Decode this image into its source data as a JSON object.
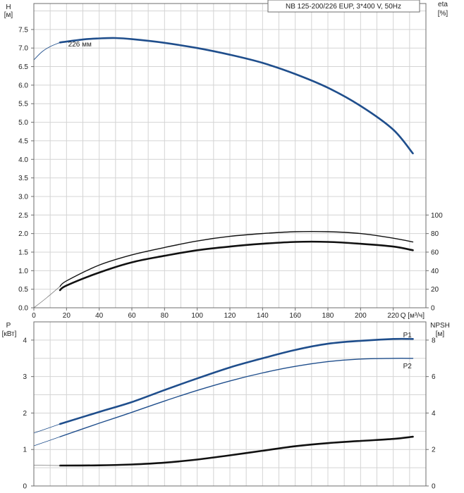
{
  "chart_data": [
    {
      "type": "line",
      "panel": "top",
      "title": "NB 125-200/226 EUP, 3*400 V, 50Hz",
      "x_axis": {
        "label": "Q [м³/ч]",
        "ticks": [
          "0",
          "20",
          "40",
          "60",
          "80",
          "100",
          "120",
          "140",
          "160",
          "180",
          "200",
          "220"
        ],
        "range": [
          0,
          240
        ]
      },
      "y_left": {
        "label_top": "H",
        "label_unit": "[м]",
        "ticks": [
          "0.0",
          "0.5",
          "1.0",
          "1.5",
          "2.0",
          "2.5",
          "3.0",
          "3.5",
          "4.0",
          "4.5",
          "5.0",
          "5.5",
          "6.0",
          "6.5",
          "7.0",
          "7.5"
        ],
        "range": [
          0,
          8.2
        ]
      },
      "y_right": {
        "label_top": "eta",
        "label_unit": "[%]",
        "ticks": [
          "0",
          "20",
          "40",
          "60",
          "80",
          "100"
        ],
        "range": [
          0,
          100
        ]
      },
      "grid": true,
      "annotations": [
        {
          "text": "226 мм",
          "x": 21,
          "y": 7.12,
          "axis": "left"
        }
      ],
      "series": [
        {
          "name": "226 мм",
          "axis": "left",
          "color": "#1f4e8c",
          "width": 2.6,
          "x": [
            16,
            30,
            40,
            50,
            60,
            80,
            100,
            120,
            140,
            160,
            180,
            200,
            220,
            232
          ],
          "y": [
            7.15,
            7.23,
            7.26,
            7.27,
            7.24,
            7.14,
            7.0,
            6.82,
            6.6,
            6.3,
            5.93,
            5.44,
            4.8,
            4.16
          ]
        },
        {
          "axis": "left",
          "color": "#1f4e8c",
          "width": 0.9,
          "x": [
            0,
            5,
            10,
            16
          ],
          "y": [
            6.68,
            6.9,
            7.04,
            7.15
          ]
        },
        {
          "axis": "right",
          "color": "#111111",
          "width": 1.4,
          "x": [
            16,
            20,
            40,
            60,
            80,
            100,
            120,
            140,
            160,
            180,
            200,
            220,
            232
          ],
          "y": [
            23,
            29,
            46,
            57,
            65,
            72,
            77,
            80,
            82,
            82,
            80,
            75,
            71
          ]
        },
        {
          "axis": "right",
          "color": "#111111",
          "width": 2.6,
          "x": [
            16,
            20,
            40,
            60,
            80,
            100,
            120,
            140,
            160,
            180,
            200,
            220,
            232
          ],
          "y": [
            19,
            24,
            38,
            49,
            56,
            62,
            66,
            69,
            71,
            71,
            69,
            66,
            62
          ]
        },
        {
          "axis": "right",
          "color": "#7a7a7a",
          "width": 0.8,
          "x": [
            0,
            8,
            16
          ],
          "y": [
            0,
            11,
            23
          ]
        }
      ]
    },
    {
      "type": "line",
      "panel": "bottom",
      "y_left": {
        "label_top": "P",
        "label_unit": "[кВт]",
        "ticks": [
          "0",
          "1",
          "2",
          "3",
          "4"
        ],
        "range": [
          0,
          4.5
        ]
      },
      "y_right": {
        "label_top": "NPSH",
        "label_unit": "[м]",
        "ticks": [
          "0",
          "2",
          "4",
          "6",
          "8"
        ],
        "range": [
          0,
          9
        ]
      },
      "grid": true,
      "series": [
        {
          "name": "P1",
          "axis": "left",
          "color": "#1f4e8c",
          "width": 2.6,
          "x": [
            16,
            40,
            60,
            80,
            100,
            120,
            140,
            160,
            180,
            200,
            220,
            232
          ],
          "y": [
            1.7,
            2.03,
            2.3,
            2.63,
            2.95,
            3.25,
            3.5,
            3.73,
            3.9,
            3.98,
            4.03,
            4.03
          ]
        },
        {
          "name": "P2",
          "axis": "left",
          "color": "#1f4e8c",
          "width": 1.4,
          "x": [
            16,
            40,
            60,
            80,
            100,
            120,
            140,
            160,
            180,
            200,
            220,
            232
          ],
          "y": [
            1.35,
            1.72,
            2.02,
            2.33,
            2.62,
            2.88,
            3.1,
            3.28,
            3.41,
            3.48,
            3.5,
            3.5
          ]
        },
        {
          "axis": "left",
          "color": "#1f4e8c",
          "width": 0.8,
          "x": [
            0,
            16
          ],
          "y": [
            1.45,
            1.7
          ]
        },
        {
          "axis": "left",
          "color": "#1f4e8c",
          "width": 0.8,
          "x": [
            0,
            16
          ],
          "y": [
            1.1,
            1.35
          ]
        },
        {
          "name": "NPSH",
          "axis": "right",
          "color": "#111111",
          "width": 2.6,
          "x": [
            16,
            40,
            60,
            80,
            100,
            120,
            140,
            160,
            180,
            200,
            220,
            232
          ],
          "y": [
            1.12,
            1.13,
            1.18,
            1.28,
            1.45,
            1.68,
            1.93,
            2.18,
            2.35,
            2.47,
            2.58,
            2.7
          ]
        },
        {
          "axis": "right",
          "color": "#7a7a7a",
          "width": 0.8,
          "x": [
            0,
            16
          ],
          "y": [
            1.14,
            1.12
          ]
        }
      ],
      "series_labels": [
        {
          "text": "P1",
          "color": "#1f4e8c",
          "x": 226,
          "y": 4.15
        },
        {
          "text": "P2",
          "color": "#1f4e8c",
          "x": 226,
          "y": 3.3
        }
      ]
    }
  ]
}
